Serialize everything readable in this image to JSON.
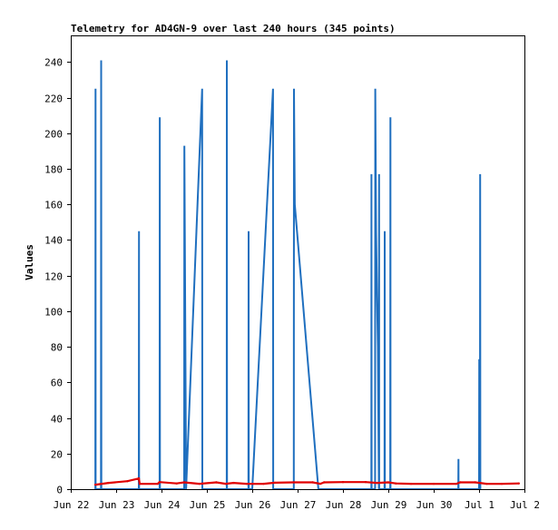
{
  "chart_data": {
    "type": "line",
    "title": "Telemetry for AD4GN-9 over last 240 hours (345 points)",
    "xlabel": "",
    "ylabel": "Values",
    "ylim": [
      0,
      255
    ],
    "xlim": [
      "2023-06-22 00:00",
      "2023-07-02 00:00"
    ],
    "x_tick_labels": [
      "Jun 22",
      "Jun 23",
      "Jun 24",
      "Jun 25",
      "Jun 26",
      "Jun 27",
      "Jun 28",
      "Jun 29",
      "Jun 30",
      "Jul 1",
      "Jul 2"
    ],
    "y_tick_labels": [
      "0",
      "20",
      "40",
      "60",
      "80",
      "100",
      "120",
      "140",
      "160",
      "180",
      "200",
      "220",
      "240"
    ],
    "grid": false,
    "legend": "none",
    "series": [
      {
        "color": "#1f6fbf",
        "points": [
          [
            "2023-06-22 13:00",
            0
          ],
          [
            "2023-06-22 13:05",
            225
          ],
          [
            "2023-06-22 13:10",
            0
          ],
          [
            "2023-06-22 16:00",
            0
          ],
          [
            "2023-06-22 16:05",
            241
          ],
          [
            "2023-06-22 16:10",
            0
          ],
          [
            "2023-06-23 12:00",
            0
          ],
          [
            "2023-06-23 12:05",
            145
          ],
          [
            "2023-06-23 12:10",
            0
          ],
          [
            "2023-06-23 23:00",
            0
          ],
          [
            "2023-06-23 23:05",
            209
          ],
          [
            "2023-06-23 23:10",
            0
          ],
          [
            "2023-06-24 12:00",
            0
          ],
          [
            "2023-06-24 12:05",
            193
          ],
          [
            "2023-06-24 13:00",
            0
          ],
          [
            "2023-06-24 21:30",
            225
          ],
          [
            "2023-06-24 21:35",
            0
          ],
          [
            "2023-06-25 10:30",
            0
          ],
          [
            "2023-06-25 10:35",
            241
          ],
          [
            "2023-06-25 10:40",
            0
          ],
          [
            "2023-06-25 22:00",
            0
          ],
          [
            "2023-06-25 22:05",
            145
          ],
          [
            "2023-06-25 22:10",
            0
          ],
          [
            "2023-06-26 00:00",
            0
          ],
          [
            "2023-06-26 11:00",
            225
          ],
          [
            "2023-06-26 11:05",
            0
          ],
          [
            "2023-06-26 22:00",
            0
          ],
          [
            "2023-06-26 22:05",
            225
          ],
          [
            "2023-06-26 22:30",
            160
          ],
          [
            "2023-06-27 11:00",
            0
          ],
          [
            "2023-06-28 15:00",
            0
          ],
          [
            "2023-06-28 15:05",
            177
          ],
          [
            "2023-06-28 15:10",
            0
          ],
          [
            "2023-06-28 17:00",
            0
          ],
          [
            "2023-06-28 17:05",
            225
          ],
          [
            "2023-06-28 17:30",
            145
          ],
          [
            "2023-06-28 18:00",
            110
          ],
          [
            "2023-06-28 18:30",
            80
          ],
          [
            "2023-06-28 19:00",
            0
          ],
          [
            "2023-06-28 19:05",
            177
          ],
          [
            "2023-06-28 19:10",
            0
          ],
          [
            "2023-06-28 22:00",
            0
          ],
          [
            "2023-06-28 22:05",
            145
          ],
          [
            "2023-06-28 22:10",
            0
          ],
          [
            "2023-06-29 01:00",
            0
          ],
          [
            "2023-06-29 01:05",
            209
          ],
          [
            "2023-06-29 01:10",
            0
          ],
          [
            "2023-06-30 13:00",
            0
          ],
          [
            "2023-06-30 13:05",
            17
          ],
          [
            "2023-06-30 13:10",
            0
          ],
          [
            "2023-07-01 00:00",
            0
          ],
          [
            "2023-07-01 00:05",
            73
          ],
          [
            "2023-07-01 00:10",
            0
          ],
          [
            "2023-07-01 00:30",
            0
          ],
          [
            "2023-07-01 00:35",
            177
          ],
          [
            "2023-07-01 00:40",
            0
          ]
        ]
      },
      {
        "color": "#e00000",
        "points": [
          [
            "2023-06-22 13:00",
            2.5
          ],
          [
            "2023-06-22 20:00",
            3.5
          ],
          [
            "2023-06-23 06:00",
            4.5
          ],
          [
            "2023-06-23 12:00",
            6
          ],
          [
            "2023-06-23 12:30",
            3
          ],
          [
            "2023-06-23 22:00",
            3
          ],
          [
            "2023-06-23 23:00",
            4
          ],
          [
            "2023-06-24 08:00",
            3.2
          ],
          [
            "2023-06-24 12:00",
            3.8
          ],
          [
            "2023-06-24 20:00",
            3
          ],
          [
            "2023-06-25 05:00",
            3.8
          ],
          [
            "2023-06-25 10:00",
            3
          ],
          [
            "2023-06-25 14:00",
            3.5
          ],
          [
            "2023-06-25 21:00",
            3
          ],
          [
            "2023-06-26 06:00",
            3
          ],
          [
            "2023-06-26 12:00",
            3.6
          ],
          [
            "2023-06-26 22:00",
            3.8
          ],
          [
            "2023-06-27 08:00",
            3.8
          ],
          [
            "2023-06-27 12:00",
            3
          ],
          [
            "2023-06-27 14:00",
            3.8
          ],
          [
            "2023-06-28 00:00",
            4
          ],
          [
            "2023-06-28 12:00",
            4
          ],
          [
            "2023-06-28 18:00",
            3.5
          ],
          [
            "2023-06-29 00:00",
            3.8
          ],
          [
            "2023-06-29 04:00",
            3.2
          ],
          [
            "2023-06-29 12:00",
            3
          ],
          [
            "2023-06-30 00:00",
            3
          ],
          [
            "2023-06-30 12:00",
            3
          ],
          [
            "2023-06-30 14:00",
            3.8
          ],
          [
            "2023-06-30 22:00",
            3.8
          ],
          [
            "2023-07-01 04:00",
            3
          ],
          [
            "2023-07-01 12:00",
            3
          ],
          [
            "2023-07-01 21:00",
            3.2
          ]
        ]
      }
    ]
  }
}
